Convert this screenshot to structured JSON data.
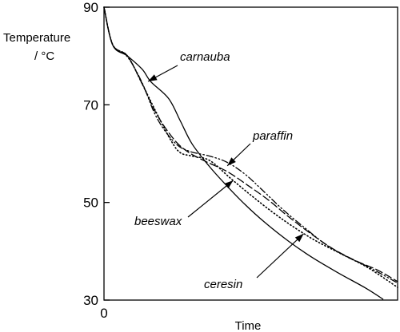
{
  "chart_data": {
    "type": "line",
    "title": "",
    "ylabel_line1": "Temperature",
    "ylabel_line2": "/ °C",
    "xlabel": "Time",
    "ylim": [
      30,
      90
    ],
    "xlim": [
      0,
      10
    ],
    "x_tick_labels": [
      "0"
    ],
    "y_ticks": [
      {
        "value": 90,
        "label": "90"
      },
      {
        "value": 70,
        "label": "70"
      },
      {
        "value": 50,
        "label": "50"
      },
      {
        "value": 30,
        "label": "30"
      }
    ],
    "grid": false,
    "legend": "none (series labeled by annotations with arrows)",
    "series": [
      {
        "name": "carnauba",
        "style": "solid",
        "points": [
          [
            0,
            90
          ],
          [
            0.3,
            82.2
          ],
          [
            0.8,
            80
          ],
          [
            1.3,
            77.3
          ],
          [
            1.6,
            74.7
          ],
          [
            2.2,
            71.3
          ],
          [
            2.6,
            66.7
          ],
          [
            3.0,
            62
          ],
          [
            3.6,
            57.3
          ],
          [
            4.2,
            53.3
          ],
          [
            4.8,
            49.6
          ],
          [
            5.5,
            45.8
          ],
          [
            6.3,
            42
          ],
          [
            7.1,
            38.7
          ],
          [
            8.0,
            35.5
          ],
          [
            8.9,
            32.5
          ],
          [
            9.5,
            30.2
          ]
        ]
      },
      {
        "name": "paraffin",
        "style": "dash-dot-dot",
        "points": [
          [
            0,
            90
          ],
          [
            0.3,
            82.2
          ],
          [
            0.8,
            79.8
          ],
          [
            1.3,
            74.5
          ],
          [
            1.8,
            67.3
          ],
          [
            2.4,
            62.3
          ],
          [
            2.9,
            60.5
          ],
          [
            3.6,
            59.5
          ],
          [
            4.2,
            58.2
          ],
          [
            4.8,
            55.8
          ],
          [
            5.4,
            52.5
          ],
          [
            6.1,
            48.5
          ],
          [
            6.9,
            44.5
          ],
          [
            7.6,
            41.2
          ],
          [
            8.3,
            38.8
          ],
          [
            9.0,
            36.8
          ],
          [
            10.0,
            33.5
          ]
        ]
      },
      {
        "name": "beeswax",
        "style": "dashed",
        "points": [
          [
            0,
            90
          ],
          [
            0.3,
            82.3
          ],
          [
            0.8,
            80
          ],
          [
            1.3,
            74.3
          ],
          [
            1.8,
            68
          ],
          [
            2.4,
            62.8
          ],
          [
            2.9,
            60.2
          ],
          [
            3.5,
            58.3
          ],
          [
            4.2,
            56.3
          ],
          [
            4.9,
            53.5
          ],
          [
            5.6,
            50.5
          ],
          [
            6.2,
            47.5
          ],
          [
            7.0,
            43.8
          ],
          [
            7.8,
            40.5
          ],
          [
            8.6,
            38
          ],
          [
            9.3,
            36.2
          ],
          [
            10.0,
            33.8
          ]
        ]
      },
      {
        "name": "ceresin",
        "style": "dotted",
        "points": [
          [
            0,
            90
          ],
          [
            0.3,
            82.3
          ],
          [
            0.8,
            80
          ],
          [
            1.3,
            74.3
          ],
          [
            1.8,
            68.2
          ],
          [
            2.3,
            62.5
          ],
          [
            2.6,
            60.2
          ],
          [
            3.0,
            59.5
          ],
          [
            3.6,
            58.6
          ],
          [
            4.3,
            55
          ],
          [
            5.0,
            51.5
          ],
          [
            5.7,
            48.2
          ],
          [
            6.4,
            45.2
          ],
          [
            7.2,
            42.2
          ],
          [
            8.1,
            39.4
          ],
          [
            9.0,
            36.6
          ],
          [
            10.0,
            32.6
          ]
        ]
      }
    ],
    "annotations": [
      {
        "text": "carnauba",
        "target": [
          1.5,
          74.8
        ]
      },
      {
        "text": "paraffin",
        "target": [
          4.2,
          57.5
        ]
      },
      {
        "text": "beeswax",
        "target": [
          4.4,
          54.5
        ]
      },
      {
        "text": "ceresin",
        "target": [
          6.8,
          43.6
        ]
      }
    ]
  }
}
